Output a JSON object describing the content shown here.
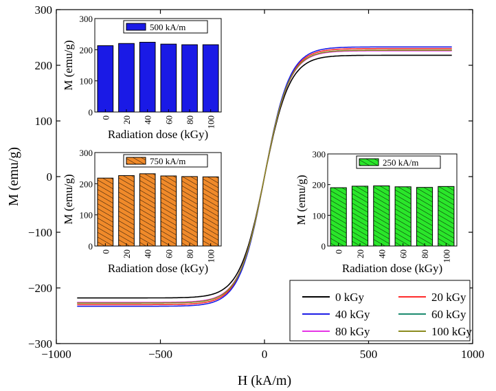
{
  "chart_data": [
    {
      "type": "line",
      "id": "main",
      "xlabel": "H (kA/m)",
      "ylabel": "M (emu/g)",
      "xlim": [
        -1000,
        1000
      ],
      "ylim": [
        -300,
        300
      ],
      "xticks": [
        -1000,
        -500,
        0,
        500,
        1000
      ],
      "yticks": [
        -300,
        -200,
        -100,
        0,
        100,
        200,
        300
      ],
      "legend": {
        "placement": "bottom-right",
        "entries": [
          {
            "name": "0 kGy",
            "color": "#000000"
          },
          {
            "name": "20 kGy",
            "color": "#ff2a2a"
          },
          {
            "name": "40 kGy",
            "color": "#1c1ce6"
          },
          {
            "name": "60 kGy",
            "color": "#1a8a6e"
          },
          {
            "name": "80 kGy",
            "color": "#e633e6"
          },
          {
            "name": "100 kGy",
            "color": "#8a8a1e"
          }
        ]
      },
      "series": [
        {
          "name": "0 kGy",
          "color": "#000000",
          "ms": 218,
          "hk": 120,
          "x": [
            -900,
            -700,
            -500,
            -300,
            -200,
            -100,
            -50,
            0,
            50,
            100,
            200,
            300,
            500,
            700,
            900
          ],
          "y": [
            -225,
            -220,
            -214,
            -196,
            -175,
            -117,
            -65,
            0,
            65,
            117,
            175,
            196,
            214,
            220,
            225
          ]
        },
        {
          "name": "20 kGy",
          "color": "#ff2a2a",
          "ms": 230,
          "hk": 120,
          "x": [
            -900,
            -700,
            -500,
            -300,
            -200,
            -100,
            -50,
            0,
            50,
            100,
            200,
            300,
            500,
            700,
            900
          ],
          "y": [
            -229,
            -226,
            -220,
            -203,
            -181,
            -121,
            -67,
            0,
            67,
            121,
            181,
            203,
            220,
            226,
            229
          ]
        },
        {
          "name": "40 kGy",
          "color": "#1c1ce6",
          "ms": 233,
          "hk": 120,
          "x": [
            -900,
            -700,
            -500,
            -300,
            -200,
            -100,
            -50,
            0,
            50,
            100,
            200,
            300,
            500,
            700,
            900
          ],
          "y": [
            -237,
            -233,
            -226,
            -208,
            -186,
            -125,
            -69,
            0,
            69,
            125,
            186,
            208,
            226,
            233,
            237
          ]
        },
        {
          "name": "60 kGy",
          "color": "#1a8a6e",
          "ms": 227,
          "hk": 120,
          "x": [
            -900,
            -700,
            -500,
            -300,
            -200,
            -100,
            -50,
            0,
            50,
            100,
            200,
            300,
            500,
            700,
            900
          ],
          "y": [
            -230,
            -226,
            -220,
            -202,
            -181,
            -121,
            -67,
            0,
            67,
            121,
            181,
            202,
            220,
            226,
            230
          ]
        },
        {
          "name": "80 kGy",
          "color": "#e633e6",
          "ms": 226,
          "hk": 120,
          "x": [
            -900,
            -700,
            -500,
            -300,
            -200,
            -100,
            -50,
            0,
            50,
            100,
            200,
            300,
            500,
            700,
            900
          ],
          "y": [
            -231,
            -227,
            -221,
            -203,
            -181,
            -121,
            -67,
            0,
            67,
            121,
            181,
            203,
            221,
            227,
            231
          ]
        },
        {
          "name": "100 kGy",
          "color": "#8a8a1e",
          "ms": 227,
          "hk": 120,
          "x": [
            -900,
            -700,
            -500,
            -300,
            -200,
            -100,
            -50,
            0,
            50,
            100,
            200,
            300,
            500,
            700,
            900
          ],
          "y": [
            -228,
            -224,
            -218,
            -200,
            -179,
            -120,
            -66,
            0,
            66,
            120,
            179,
            200,
            218,
            224,
            228
          ]
        }
      ]
    },
    {
      "type": "bar",
      "id": "inset500",
      "legend_label": "500 kA/m",
      "color": "#1a1ae6",
      "hatch": false,
      "xlabel": "Radiation dose (kGy)",
      "ylabel": "M (emu/g)",
      "ylim": [
        0,
        300
      ],
      "yticks": [
        0,
        100,
        200,
        300
      ],
      "categories": [
        "0",
        "20",
        "40",
        "60",
        "80",
        "100"
      ],
      "values": [
        213,
        220,
        224,
        218,
        216,
        216
      ]
    },
    {
      "type": "bar",
      "id": "inset750",
      "legend_label": "750 kA/m",
      "color": "#f08a2a",
      "hatch": true,
      "xlabel": "Radiation dose (kGy)",
      "ylabel": "M (emu/g)",
      "ylim": [
        0,
        300
      ],
      "yticks": [
        0,
        100,
        200,
        300
      ],
      "categories": [
        "0",
        "20",
        "40",
        "60",
        "80",
        "100"
      ],
      "values": [
        218,
        226,
        232,
        225,
        223,
        222
      ]
    },
    {
      "type": "bar",
      "id": "inset250",
      "legend_label": "250 kA/m",
      "color": "#2ae62a",
      "hatch": true,
      "xlabel": "Radiation dose (kGy)",
      "ylabel": "M (emu/g)",
      "ylim": [
        0,
        300
      ],
      "yticks": [
        0,
        100,
        200,
        300
      ],
      "categories": [
        "0",
        "20",
        "40",
        "60",
        "80",
        "100"
      ],
      "values": [
        190,
        195,
        196,
        193,
        191,
        194
      ]
    }
  ]
}
